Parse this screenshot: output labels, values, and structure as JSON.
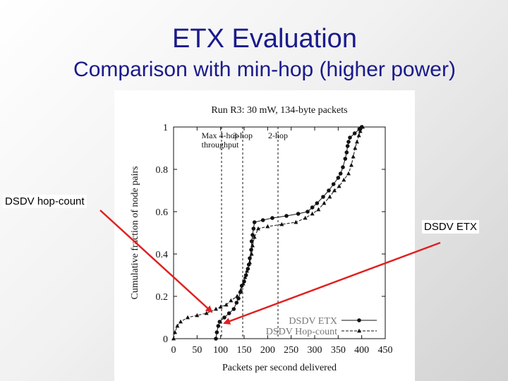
{
  "slide": {
    "title": "ETX Evaluation",
    "subtitle": "Comparison with min-hop (higher power)"
  },
  "callouts": {
    "hopcount": "DSDV hop-count",
    "etx": "DSDV ETX"
  },
  "colors": {
    "title": "#1a1a8c",
    "arrow": "#e02020",
    "ink": "#111111"
  },
  "chart_data": {
    "type": "line",
    "title": "Run R3: 30 mW, 134-byte packets",
    "xlabel": "Packets per second delivered",
    "ylabel": "Cumulative fraction of node pairs",
    "xlim": [
      0,
      450
    ],
    "ylim": [
      0,
      1
    ],
    "x_ticks": [
      0,
      50,
      100,
      150,
      200,
      250,
      300,
      350,
      400,
      450
    ],
    "y_ticks": [
      0,
      0.2,
      0.4,
      0.6,
      0.8,
      1
    ],
    "y_tick_labels": [
      "0",
      "0.2",
      "0.4",
      "0.6",
      "0.8",
      "1"
    ],
    "grid": false,
    "legend_position": "bottom-right",
    "reference_lines": [
      {
        "x": 102,
        "label_lines": [
          "Max 4-hop",
          "throughput"
        ]
      },
      {
        "x": 147,
        "label_lines": [
          "3-hop"
        ]
      },
      {
        "x": 222,
        "label_lines": [
          "2-hop"
        ]
      }
    ],
    "series": [
      {
        "name": "DSDV ETX",
        "marker": "circle",
        "points": [
          [
            90,
            0.0
          ],
          [
            92,
            0.03
          ],
          [
            95,
            0.06
          ],
          [
            98,
            0.08
          ],
          [
            108,
            0.1
          ],
          [
            118,
            0.12
          ],
          [
            128,
            0.14
          ],
          [
            134,
            0.17
          ],
          [
            138,
            0.19
          ],
          [
            142,
            0.22
          ],
          [
            145,
            0.25
          ],
          [
            150,
            0.27
          ],
          [
            154,
            0.3
          ],
          [
            158,
            0.33
          ],
          [
            160,
            0.35
          ],
          [
            162,
            0.38
          ],
          [
            165,
            0.42
          ],
          [
            166,
            0.46
          ],
          [
            168,
            0.49
          ],
          [
            170,
            0.52
          ],
          [
            172,
            0.55
          ],
          [
            190,
            0.56
          ],
          [
            210,
            0.57
          ],
          [
            240,
            0.58
          ],
          [
            265,
            0.59
          ],
          [
            285,
            0.6
          ],
          [
            295,
            0.62
          ],
          [
            305,
            0.64
          ],
          [
            318,
            0.67
          ],
          [
            330,
            0.7
          ],
          [
            340,
            0.73
          ],
          [
            350,
            0.76
          ],
          [
            355,
            0.78
          ],
          [
            360,
            0.81
          ],
          [
            365,
            0.85
          ],
          [
            368,
            0.88
          ],
          [
            370,
            0.91
          ],
          [
            372,
            0.93
          ],
          [
            375,
            0.95
          ],
          [
            385,
            0.97
          ],
          [
            395,
            0.99
          ],
          [
            400,
            1.0
          ]
        ]
      },
      {
        "name": "DSDV Hop-count",
        "marker": "triangle",
        "points": [
          [
            0,
            0.0
          ],
          [
            3,
            0.03
          ],
          [
            8,
            0.06
          ],
          [
            15,
            0.08
          ],
          [
            30,
            0.1
          ],
          [
            50,
            0.11
          ],
          [
            70,
            0.12
          ],
          [
            90,
            0.14
          ],
          [
            100,
            0.15
          ],
          [
            112,
            0.16
          ],
          [
            122,
            0.18
          ],
          [
            135,
            0.2
          ],
          [
            143,
            0.23
          ],
          [
            148,
            0.26
          ],
          [
            152,
            0.29
          ],
          [
            156,
            0.32
          ],
          [
            162,
            0.36
          ],
          [
            166,
            0.4
          ],
          [
            168,
            0.44
          ],
          [
            172,
            0.48
          ],
          [
            180,
            0.52
          ],
          [
            200,
            0.53
          ],
          [
            230,
            0.54
          ],
          [
            260,
            0.55
          ],
          [
            280,
            0.57
          ],
          [
            295,
            0.59
          ],
          [
            308,
            0.61
          ],
          [
            320,
            0.64
          ],
          [
            332,
            0.67
          ],
          [
            342,
            0.7
          ],
          [
            352,
            0.72
          ],
          [
            362,
            0.75
          ],
          [
            372,
            0.78
          ],
          [
            378,
            0.82
          ],
          [
            382,
            0.86
          ],
          [
            386,
            0.9
          ],
          [
            390,
            0.93
          ],
          [
            394,
            0.96
          ],
          [
            397,
            0.98
          ],
          [
            402,
            1.0
          ]
        ]
      }
    ]
  }
}
